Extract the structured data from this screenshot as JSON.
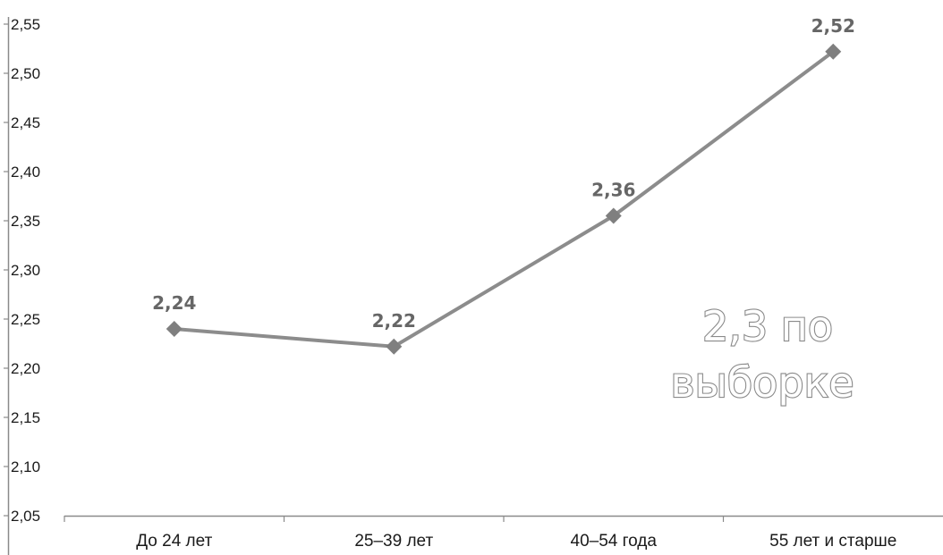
{
  "chart_data": {
    "type": "line",
    "categories": [
      "До 24 лет",
      "25–39 лет",
      "40–54 года",
      "55 лет и старше"
    ],
    "series": [
      {
        "values": [
          2.24,
          2.222,
          2.355,
          2.522
        ],
        "data_labels": [
          "2,24",
          "2,22",
          "2,36",
          "2,52"
        ],
        "color": "#8c8c8c",
        "marker": "diamond"
      }
    ],
    "ylim": [
      2.05,
      2.55
    ],
    "yticks": [
      2.05,
      2.1,
      2.15,
      2.2,
      2.25,
      2.3,
      2.35,
      2.4,
      2.45,
      2.5,
      2.55
    ],
    "ytick_labels": [
      "2,05",
      "2,10",
      "2,15",
      "2,20",
      "2,25",
      "2,30",
      "2,35",
      "2,40",
      "2,45",
      "2,50",
      "2,55"
    ],
    "grid": false,
    "annotation": {
      "line1": "2,3 по",
      "line2": "выборке"
    },
    "colors": {
      "axis": "#8a8a8a",
      "line": "#8c8c8c",
      "marker": "#7f7f7f",
      "data_label": "#666666"
    }
  }
}
